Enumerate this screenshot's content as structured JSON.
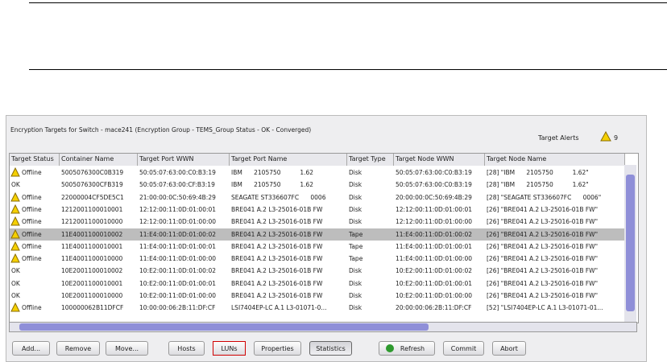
{
  "panel": {
    "title": "Encryption Targets for Switch - mace241 (Encryption Group - TEMS_Group Status - OK - Converged)",
    "alerts_label": "Target Alerts",
    "alerts_count": "9"
  },
  "table": {
    "columns": [
      "Target Status",
      "Container Name",
      "Target Port WWN",
      "Target Port Name",
      "Target Type",
      "Target Node WWN",
      "Target Node Name"
    ],
    "selected_row": 5,
    "rows": [
      {
        "warning": true,
        "cells": [
          "Offline",
          "5005076300C0B319",
          "50:05:07:63:00:C0:B3:19",
          "IBM      2105750          1.62",
          "Disk",
          "50:05:07:63:00:C0:B3:19",
          "[28] \"IBM      2105750          1.62\""
        ]
      },
      {
        "warning": false,
        "cells": [
          "OK",
          "5005076300CFB319",
          "50:05:07:63:00:CF:B3:19",
          "IBM      2105750          1.62",
          "Disk",
          "50:05:07:63:00:C0:B3:19",
          "[28] \"IBM      2105750          1.62\""
        ]
      },
      {
        "warning": true,
        "cells": [
          "Offline",
          "22000004CF5DE5C1",
          "21:00:00:0C:50:69:4B:29",
          "SEAGATE ST336607FC      0006",
          "Disk",
          "20:00:00:0C:50:69:4B:29",
          "[28] \"SEAGATE ST336607FC      0006\""
        ]
      },
      {
        "warning": true,
        "cells": [
          "Offline",
          "1212001100010001",
          "12:12:00:11:0D:01:00:01",
          "BRE041 A.2 L3-25016-01B FW",
          "Disk",
          "12:12:00:11:0D:01:00:01",
          "[26] \"BRE041 A.2 L3-25016-01B FW\""
        ]
      },
      {
        "warning": true,
        "cells": [
          "Offline",
          "1212001100010000",
          "12:12:00:11:0D:01:00:00",
          "BRE041 A.2 L3-25016-01B FW",
          "Disk",
          "12:12:00:11:0D:01:00:00",
          "[26] \"BRE041 A.2 L3-25016-01B FW\""
        ]
      },
      {
        "warning": true,
        "cells": [
          "Offline",
          "11E4001100010002",
          "11:E4:00:11:0D:01:00:02",
          "BRE041 A.2 L3-25016-01B FW",
          "Tape",
          "11:E4:00:11:0D:01:00:02",
          "[26] \"BRE041 A.2 L3-25016-01B FW\""
        ]
      },
      {
        "warning": true,
        "cells": [
          "Offline",
          "11E4001100010001",
          "11:E4:00:11:0D:01:00:01",
          "BRE041 A.2 L3-25016-01B FW",
          "Tape",
          "11:E4:00:11:0D:01:00:01",
          "[26] \"BRE041 A.2 L3-25016-01B FW\""
        ]
      },
      {
        "warning": true,
        "cells": [
          "Offline",
          "11E4001100010000",
          "11:E4:00:11:0D:01:00:00",
          "BRE041 A.2 L3-25016-01B FW",
          "Tape",
          "11:E4:00:11:0D:01:00:00",
          "[26] \"BRE041 A.2 L3-25016-01B FW\""
        ]
      },
      {
        "warning": false,
        "cells": [
          "OK",
          "10E2001100010002",
          "10:E2:00:11:0D:01:00:02",
          "BRE041 A.2 L3-25016-01B FW",
          "Disk",
          "10:E2:00:11:0D:01:00:02",
          "[26] \"BRE041 A.2 L3-25016-01B FW\""
        ]
      },
      {
        "warning": false,
        "cells": [
          "OK",
          "10E2001100010001",
          "10:E2:00:11:0D:01:00:01",
          "BRE041 A.2 L3-25016-01B FW",
          "Disk",
          "10:E2:00:11:0D:01:00:01",
          "[26] \"BRE041 A.2 L3-25016-01B FW\""
        ]
      },
      {
        "warning": false,
        "cells": [
          "OK",
          "10E2001100010000",
          "10:E2:00:11:0D:01:00:00",
          "BRE041 A.2 L3-25016-01B FW",
          "Disk",
          "10:E2:00:11:0D:01:00:00",
          "[26] \"BRE041 A.2 L3-25016-01B FW\""
        ]
      },
      {
        "warning": true,
        "cells": [
          "Offline",
          "100000062B11DFCF",
          "10:00:00:06:2B:11:DF:CF",
          "LSI7404EP-LC A.1 L3-01071-0...",
          "Disk",
          "20:00:00:06:2B:11:DF:CF",
          "[52] \"LSI7404EP-LC A.1 L3-01071-01..."
        ]
      }
    ]
  },
  "buttons": [
    "Add...",
    "Remove",
    "Move...",
    "Hosts",
    "LUNs",
    "Properties",
    "Statistics",
    "Refresh",
    "Commit",
    "Abort"
  ],
  "highlighted_button": 4,
  "pressed_button": 6,
  "refresh_button": 7
}
